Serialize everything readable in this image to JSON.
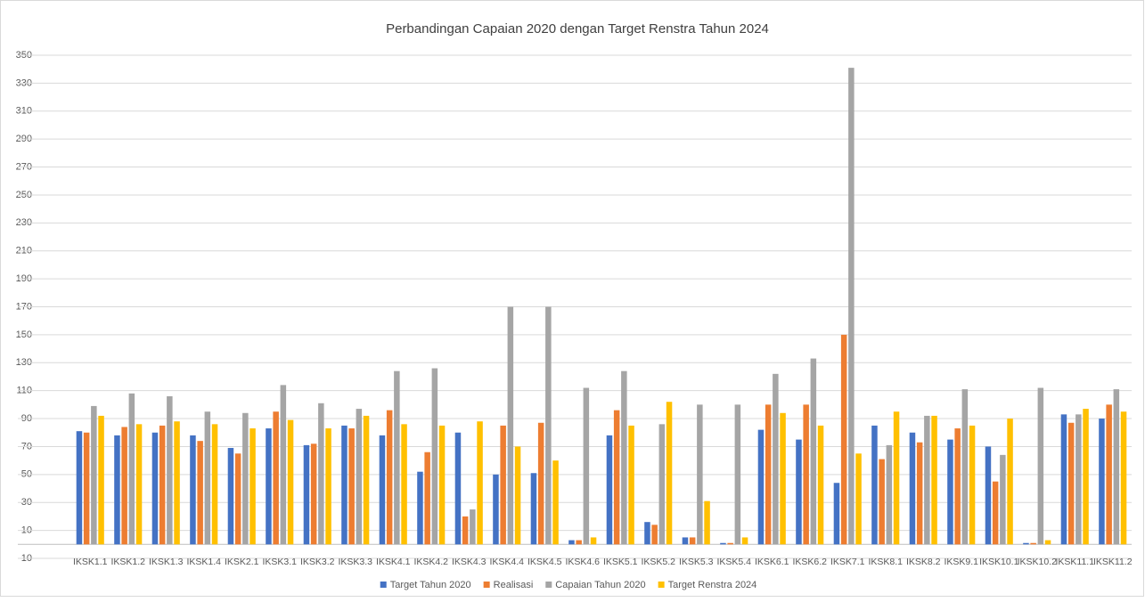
{
  "chart_data": {
    "type": "bar",
    "title": "Perbandingan Capaian 2020 dengan Target Renstra Tahun 2024",
    "categories": [
      "IKSK1.1",
      "IKSK1.2",
      "IKSK1.3",
      "IKSK1.4",
      "IKSK2.1",
      "IKSK3.1",
      "IKSK3.2",
      "IKSK3.3",
      "IKSK4.1",
      "IKSK4.2",
      "IKSK4.3",
      "IKSK4.4",
      "IKSK4.5",
      "IKSK4.6",
      "IKSK5.1",
      "IKSK5.2",
      "IKSK5.3",
      "IKSK5.4",
      "IKSK6.1",
      "IKSK6.2",
      "IKSK7.1",
      "IKSK8.1",
      "IKSK8.2",
      "IKSK9.1",
      "IKSK10.1",
      "IKSK10.2",
      "IKSK11.1",
      "IKSK11.2"
    ],
    "series": [
      {
        "name": "Target Tahun 2020",
        "color": "#4472c4",
        "values": [
          81,
          78,
          80,
          78,
          69,
          83,
          71,
          85,
          78,
          52,
          80,
          50,
          51,
          3,
          78,
          16,
          5,
          1,
          82,
          75,
          44,
          85,
          80,
          75,
          70,
          1,
          93,
          90
        ]
      },
      {
        "name": "Realisasi",
        "color": "#ed7d31",
        "values": [
          80,
          84,
          85,
          74,
          65,
          95,
          72,
          83,
          96,
          66,
          20,
          85,
          87,
          3,
          96,
          14,
          5,
          1,
          100,
          100,
          150,
          61,
          73,
          83,
          45,
          1,
          87,
          100
        ]
      },
      {
        "name": "Capaian Tahun 2020",
        "color": "#a5a5a5",
        "values": [
          99,
          108,
          106,
          95,
          94,
          114,
          101,
          97,
          124,
          126,
          25,
          170,
          170,
          112,
          124,
          86,
          100,
          100,
          122,
          133,
          341,
          71,
          92,
          111,
          64,
          112,
          93,
          111
        ]
      },
      {
        "name": "Target Renstra 2024",
        "color": "#ffc000",
        "values": [
          92,
          86,
          88,
          86,
          83,
          89,
          83,
          92,
          86,
          85,
          88,
          70,
          60,
          5,
          85,
          102,
          31,
          5,
          94,
          85,
          65,
          95,
          92,
          85,
          90,
          3,
          97,
          95
        ]
      }
    ],
    "ylim": [
      -10,
      350
    ],
    "yticks": [
      -10,
      10,
      30,
      50,
      70,
      90,
      110,
      130,
      150,
      170,
      190,
      210,
      230,
      250,
      270,
      290,
      310,
      330,
      350
    ],
    "grid": true,
    "legend": "bottom"
  }
}
